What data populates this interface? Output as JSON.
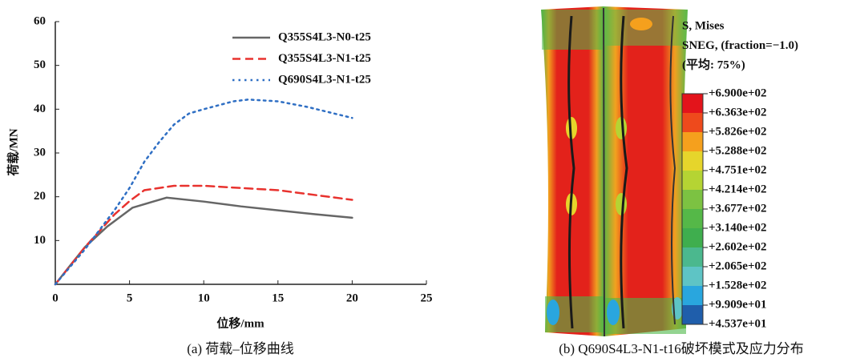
{
  "chart_data": {
    "type": "line",
    "x_label": "位移/mm",
    "y_label": "荷载/MN",
    "caption": "(a) 荷载–位移曲线",
    "xlim": [
      0,
      25
    ],
    "xticks": [
      0,
      5,
      10,
      15,
      20,
      25
    ],
    "ylim": [
      0,
      60
    ],
    "yticks": [
      10,
      20,
      30,
      40,
      50,
      60
    ],
    "grid": false,
    "legend": "upper right",
    "series": [
      {
        "name": "Q355S4L3-N0-t25",
        "color": "#666666",
        "linestyle": "solid",
        "x": [
          0,
          1,
          2,
          3.5,
          5.2,
          6.5,
          7.5,
          10,
          12.5,
          15,
          17.5,
          20
        ],
        "values": [
          0,
          4.3,
          8.5,
          13.2,
          17.5,
          18.8,
          19.8,
          18.9,
          17.8,
          16.9,
          16,
          15.2
        ]
      },
      {
        "name": "Q355S4L3-N1-t25",
        "color": "#e8322e",
        "linestyle": "dashed",
        "x": [
          0,
          2,
          4,
          5,
          6,
          8,
          10,
          15,
          20
        ],
        "values": [
          0,
          8.5,
          16,
          19,
          21.5,
          22.5,
          22.5,
          21.5,
          19.3
        ]
      },
      {
        "name": "Q690S4L3-N1-t25",
        "color": "#2f6fc4",
        "linestyle": "dotted",
        "x": [
          0,
          2,
          4,
          5,
          6,
          7,
          8,
          9,
          10,
          12,
          13,
          15,
          17,
          20
        ],
        "values": [
          0,
          8,
          17,
          22,
          28,
          32.5,
          36.5,
          39,
          40,
          41.8,
          42.2,
          41.8,
          40.5,
          38
        ]
      }
    ]
  },
  "panel_b": {
    "caption": "(b) Q690S4L3-N1-t16破坏模式及应力分布",
    "legend_title": [
      "S, Mises",
      "SNEG, (fraction=−1.0)",
      "(平均: 75%)"
    ],
    "labels": [
      "+6.900e+02",
      "+6.363e+02",
      "+5.826e+02",
      "+5.288e+02",
      "+4.751e+02",
      "+4.214e+02",
      "+3.677e+02",
      "+3.140e+02",
      "+2.602e+02",
      "+2.065e+02",
      "+1.528e+02",
      "+9.909e+01",
      "+4.537e+01"
    ],
    "colors": [
      "#e3141b",
      "#ee4a1c",
      "#f5a01d",
      "#e6d52b",
      "#b5d433",
      "#7cc242",
      "#55b848",
      "#3fae4e",
      "#4bb88e",
      "#5ec4c5",
      "#29a6de",
      "#1f5eab"
    ]
  }
}
